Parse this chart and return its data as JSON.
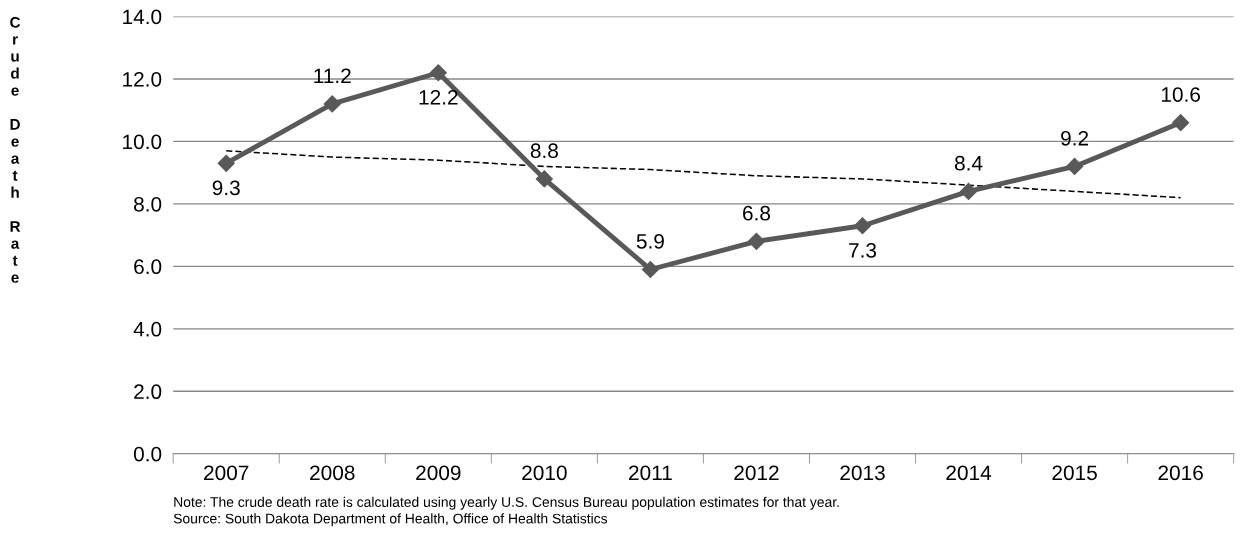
{
  "chart_data": {
    "type": "line",
    "ylabel": "Crude Death Rate",
    "categories": [
      "2007",
      "2008",
      "2009",
      "2010",
      "2011",
      "2012",
      "2013",
      "2014",
      "2015",
      "2016"
    ],
    "series": [
      {
        "color": "#595959",
        "values": [
          9.3,
          11.2,
          12.2,
          8.8,
          5.9,
          6.8,
          7.3,
          8.4,
          9.2,
          10.6
        ],
        "value_labels": [
          "9.3",
          "11.2",
          "12.2",
          "8.8",
          "5.9",
          "6.8",
          "7.3",
          "8.4",
          "9.2",
          "10.6"
        ],
        "marker": "diamond",
        "line_style": "solid"
      },
      {
        "type": "line",
        "color": "#000000",
        "values": [
          9.7,
          9.5,
          9.4,
          9.2,
          9.1,
          8.9,
          8.8,
          8.6,
          8.4,
          8.2
        ],
        "marker": "none",
        "line_style": "dashed"
      }
    ],
    "ylim": [
      0,
      14
    ],
    "yticks": [
      {
        "value": 0,
        "label": "0.0"
      },
      {
        "value": 2,
        "label": "2.0"
      },
      {
        "value": 4,
        "label": "4.0"
      },
      {
        "value": 6,
        "label": "6.0"
      },
      {
        "value": 8,
        "label": "8.0"
      },
      {
        "value": 10,
        "label": "10.0"
      },
      {
        "value": 12,
        "label": "12.0"
      },
      {
        "value": 14,
        "label": "14.0"
      }
    ],
    "grid": "y",
    "legend": false,
    "annotations": [
      "Note: The crude death rate is calculated using yearly U.S. Census Bureau population estimates for that year.",
      "Source: South Dakota Department of Health, Office of Health Statistics"
    ]
  }
}
